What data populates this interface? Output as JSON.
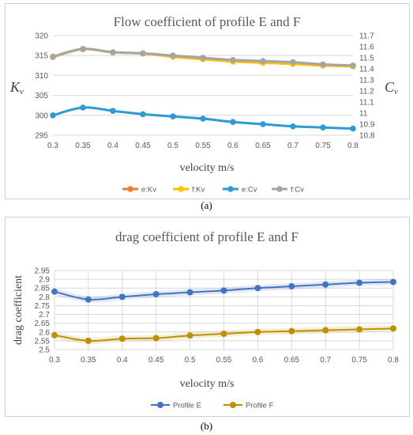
{
  "chart_data": [
    {
      "type": "line",
      "title": "Flow coefficient of profile E and F",
      "xlabel": "velocity m/s",
      "ylabel": "Kv",
      "ylabel_right": "Cv",
      "categories": [
        "0.3",
        "0.35",
        "0.4",
        "0.45",
        "0.5",
        "0.55",
        "0.6",
        "0.65",
        "0.7",
        "0.75",
        "0.8"
      ],
      "ylim": [
        295,
        320
      ],
      "yticks": [
        "295",
        "300",
        "305",
        "310",
        "315",
        "320"
      ],
      "ylim_right": [
        10.8,
        11.7
      ],
      "yticks_right": [
        "10.8",
        "10.9",
        "11",
        "11.1",
        "11.2",
        "11.3",
        "11.4",
        "11.5",
        "11.6",
        "11.7"
      ],
      "grid": true,
      "legend": "bottom",
      "series": [
        {
          "name": "e:Kv",
          "color": "#ED7D31",
          "axis": "left",
          "values": [
            314.6,
            316.6,
            315.8,
            315.5,
            314.7,
            314.1,
            313.5,
            313.2,
            312.9,
            312.5,
            312.3
          ]
        },
        {
          "name": "f:Kv",
          "color": "#FFC000",
          "axis": "left",
          "values": [
            314.6,
            316.6,
            315.8,
            315.5,
            314.7,
            314.1,
            313.5,
            313.2,
            312.9,
            312.5,
            312.3
          ]
        },
        {
          "name": "e:Cv",
          "color": "#2E9BD4",
          "axis": "right",
          "values": [
            10.98,
            11.05,
            11.02,
            10.99,
            10.97,
            10.95,
            10.92,
            10.9,
            10.88,
            10.87,
            10.86
          ]
        },
        {
          "name": "f:Cv",
          "color": "#A5A5A5",
          "axis": "right",
          "values": [
            11.51,
            11.58,
            11.55,
            11.54,
            11.52,
            11.5,
            11.48,
            11.47,
            11.46,
            11.44,
            11.43
          ]
        }
      ]
    },
    {
      "type": "line",
      "title": "drag coefficient of profile E and F",
      "xlabel": "velocity m/s",
      "ylabel": "drag coefficient",
      "categories": [
        "0.3",
        "0.35",
        "0.4",
        "0.45",
        "0.5",
        "0.55",
        "0.6",
        "0.65",
        "0.7",
        "0.75",
        "0.8"
      ],
      "ylim": [
        2.5,
        2.95
      ],
      "yticks": [
        "2.5",
        "2.55",
        "2.6",
        "2.65",
        "2.7",
        "2.75",
        "2.8",
        "2.85",
        "2.9",
        "2.95"
      ],
      "grid": true,
      "legend": "bottom",
      "series": [
        {
          "name": "Profile E",
          "color": "#4472C4",
          "values": [
            2.83,
            2.785,
            2.8,
            2.815,
            2.826,
            2.836,
            2.85,
            2.86,
            2.87,
            2.88,
            2.885
          ]
        },
        {
          "name": "Profile F",
          "color": "#BF9000",
          "values": [
            2.582,
            2.55,
            2.562,
            2.565,
            2.58,
            2.59,
            2.6,
            2.605,
            2.61,
            2.615,
            2.62
          ]
        }
      ]
    }
  ],
  "captions": {
    "a": "(a)",
    "b": "(b)"
  }
}
